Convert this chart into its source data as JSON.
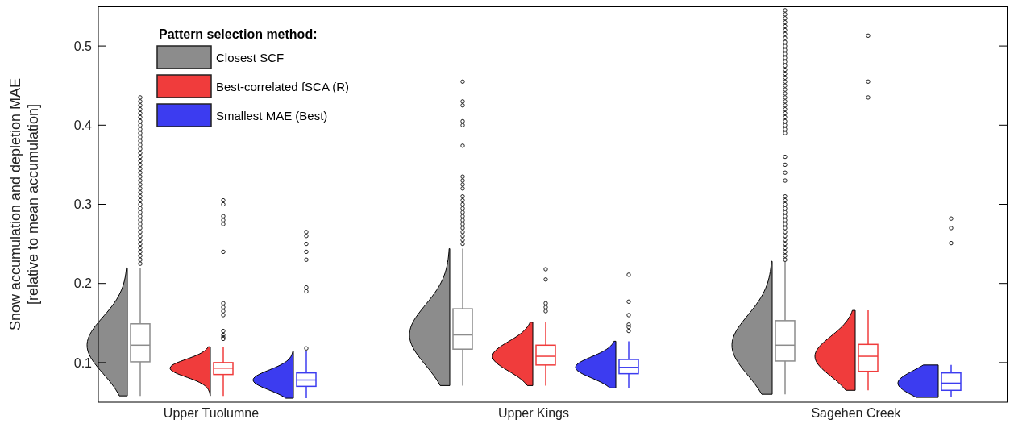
{
  "chart_data": {
    "type": "box",
    "ylabel": "Snow accumulation and depletion MAE\n[relative to mean accumulation]",
    "legend_title": "Pattern selection method:",
    "legend": "top left",
    "categories": [
      "Upper Tuolumne",
      "Upper Kings",
      "Sagehen Creek"
    ],
    "ylim": [
      0.05,
      0.55
    ],
    "yticks": [
      0.1,
      0.2,
      0.3,
      0.4,
      0.5
    ],
    "series": [
      {
        "name": "Closest SCF",
        "color": "#8c8c8c",
        "boxes": [
          {
            "low": 0.058,
            "q1": 0.101,
            "median": 0.122,
            "q3": 0.149,
            "high": 0.22,
            "outliers": [
              0.225,
              0.23,
              0.235,
              0.24,
              0.245,
              0.25,
              0.255,
              0.26,
              0.265,
              0.27,
              0.275,
              0.28,
              0.285,
              0.29,
              0.295,
              0.3,
              0.305,
              0.31,
              0.315,
              0.32,
              0.325,
              0.33,
              0.335,
              0.34,
              0.345,
              0.35,
              0.355,
              0.36,
              0.365,
              0.37,
              0.375,
              0.38,
              0.385,
              0.39,
              0.395,
              0.4,
              0.405,
              0.41,
              0.415,
              0.42,
              0.425,
              0.43,
              0.435
            ]
          },
          {
            "low": 0.071,
            "q1": 0.117,
            "median": 0.135,
            "q3": 0.168,
            "high": 0.244,
            "outliers": [
              0.25,
              0.255,
              0.26,
              0.265,
              0.27,
              0.275,
              0.28,
              0.285,
              0.29,
              0.295,
              0.3,
              0.305,
              0.31,
              0.32,
              0.325,
              0.33,
              0.335,
              0.374,
              0.4,
              0.405,
              0.425,
              0.43,
              0.455
            ]
          },
          {
            "low": 0.06,
            "q1": 0.102,
            "median": 0.122,
            "q3": 0.153,
            "high": 0.228,
            "outliers": [
              0.23,
              0.235,
              0.24,
              0.245,
              0.25,
              0.255,
              0.26,
              0.265,
              0.27,
              0.275,
              0.28,
              0.285,
              0.29,
              0.295,
              0.3,
              0.305,
              0.31,
              0.33,
              0.34,
              0.35,
              0.36,
              0.39,
              0.395,
              0.4,
              0.405,
              0.41,
              0.415,
              0.42,
              0.425,
              0.43,
              0.435,
              0.44,
              0.445,
              0.45,
              0.455,
              0.46,
              0.465,
              0.47,
              0.475,
              0.48,
              0.485,
              0.49,
              0.495,
              0.5,
              0.505,
              0.51,
              0.515,
              0.52,
              0.525,
              0.53,
              0.535,
              0.54,
              0.545
            ]
          }
        ]
      },
      {
        "name": "Best-correlated fSCA (R)",
        "color": "#f03c3c",
        "boxes": [
          {
            "low": 0.058,
            "q1": 0.085,
            "median": 0.093,
            "q3": 0.1,
            "high": 0.12,
            "outliers": [
              0.13,
              0.132,
              0.135,
              0.14,
              0.16,
              0.165,
              0.17,
              0.175,
              0.24,
              0.275,
              0.28,
              0.285,
              0.3,
              0.305
            ]
          },
          {
            "low": 0.071,
            "q1": 0.097,
            "median": 0.108,
            "q3": 0.122,
            "high": 0.151,
            "outliers": [
              0.165,
              0.17,
              0.175,
              0.205,
              0.218
            ]
          },
          {
            "low": 0.065,
            "q1": 0.089,
            "median": 0.108,
            "q3": 0.123,
            "high": 0.166,
            "outliers": [
              0.435,
              0.455,
              0.513
            ]
          }
        ]
      },
      {
        "name": "Smallest MAE (Best)",
        "color": "#3c3cf0",
        "boxes": [
          {
            "low": 0.055,
            "q1": 0.07,
            "median": 0.078,
            "q3": 0.087,
            "high": 0.115,
            "outliers": [
              0.118,
              0.19,
              0.195,
              0.23,
              0.24,
              0.25,
              0.26,
              0.265
            ]
          },
          {
            "low": 0.068,
            "q1": 0.086,
            "median": 0.094,
            "q3": 0.104,
            "high": 0.127,
            "outliers": [
              0.14,
              0.145,
              0.148,
              0.16,
              0.177,
              0.211
            ]
          },
          {
            "low": 0.056,
            "q1": 0.065,
            "median": 0.074,
            "q3": 0.087,
            "high": 0.097,
            "outliers": [
              0.251,
              0.27,
              0.282
            ]
          }
        ]
      }
    ]
  }
}
